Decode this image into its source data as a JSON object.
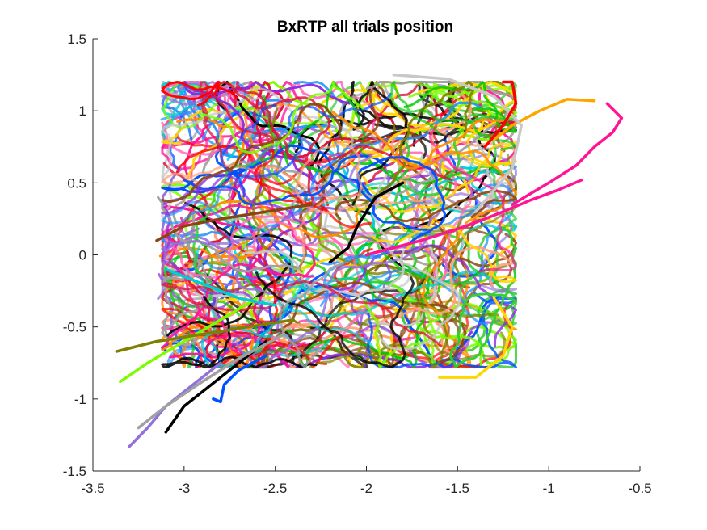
{
  "chart_data": {
    "type": "line",
    "title": "BxRTP all trials position",
    "xlabel": "",
    "ylabel": "",
    "xlim": [
      -3.5,
      -0.5
    ],
    "ylim": [
      -1.5,
      1.5
    ],
    "xticks": [
      "-3.5",
      "-3",
      "-2.5",
      "-2",
      "-1.5",
      "-1",
      "-0.5"
    ],
    "yticks": [
      "1.5",
      "1",
      "0.5",
      "0",
      "-0.5",
      "-1",
      "-1.5"
    ],
    "grid": false,
    "legend": "none",
    "series_colors": [
      "#ff1493",
      "#00c800",
      "#ff8c00",
      "#8b4513",
      "#0050ff",
      "#7cfc00",
      "#ff0000",
      "#000000",
      "#ffa07a",
      "#a0a0a0",
      "#9370db",
      "#32cd32",
      "#ff69b4",
      "#808000",
      "#1e90ff",
      "#c8c8c8",
      "#8a2be2",
      "#ffd700",
      "#00ced1",
      "#dc143c"
    ],
    "series": [
      {
        "color": "#ff1493",
        "x": [
          -0.82,
          -0.95,
          -1.1,
          -1.25,
          -1.45,
          -1.7,
          -2.0
        ],
        "y": [
          0.52,
          0.45,
          0.38,
          0.3,
          0.2,
          0.1,
          0.0
        ]
      },
      {
        "color": "#ff1493",
        "x": [
          -0.68,
          -0.6,
          -0.65,
          -0.75,
          -0.85,
          -1.0,
          -1.2
        ],
        "y": [
          1.05,
          0.95,
          0.85,
          0.75,
          0.62,
          0.5,
          0.35
        ]
      },
      {
        "color": "#ffa500",
        "x": [
          -0.75,
          -0.9,
          -1.05,
          -1.2,
          -1.3
        ],
        "y": [
          1.07,
          1.08,
          1.0,
          0.9,
          0.8
        ]
      },
      {
        "color": "#7cfc00",
        "x": [
          -3.35,
          -3.2,
          -3.0,
          -2.8,
          -2.6
        ],
        "y": [
          -0.88,
          -0.75,
          -0.6,
          -0.45,
          -0.3
        ]
      },
      {
        "color": "#9370db",
        "x": [
          -3.3,
          -3.2,
          -3.1,
          -2.95,
          -2.8
        ],
        "y": [
          -1.33,
          -1.2,
          -1.05,
          -0.9,
          -0.75
        ]
      },
      {
        "color": "#000000",
        "x": [
          -3.1,
          -3.0,
          -2.85,
          -2.7,
          -2.55
        ],
        "y": [
          -1.23,
          -1.05,
          -0.9,
          -0.75,
          -0.6
        ]
      },
      {
        "color": "#0050ff",
        "x": [
          -2.84,
          -2.8,
          -2.78,
          -2.7,
          -2.55
        ],
        "y": [
          -1.0,
          -1.02,
          -0.9,
          -0.8,
          -0.7
        ]
      },
      {
        "color": "#a0a0a0",
        "x": [
          -3.25,
          -3.1,
          -2.9,
          -2.7,
          -2.45
        ],
        "y": [
          -1.2,
          -1.05,
          -0.88,
          -0.72,
          -0.55
        ]
      },
      {
        "color": "#808000",
        "x": [
          -3.37,
          -3.15,
          -2.9,
          -2.65,
          -2.4
        ],
        "y": [
          -0.67,
          -0.6,
          -0.55,
          -0.5,
          -0.45
        ]
      },
      {
        "color": "#ffd700",
        "x": [
          -1.6,
          -1.4,
          -1.25,
          -1.2,
          -1.3
        ],
        "y": [
          -0.85,
          -0.85,
          -0.7,
          -0.5,
          -0.3
        ]
      },
      {
        "color": "#c8c8c8",
        "x": [
          -1.85,
          -1.55,
          -1.3,
          -1.15,
          -1.2,
          -1.4
        ],
        "y": [
          1.25,
          1.22,
          1.1,
          0.9,
          0.6,
          0.3
        ]
      },
      {
        "color": "#ff0000",
        "x": [
          -1.25,
          -1.2,
          -1.18,
          -1.25,
          -1.35
        ],
        "y": [
          1.2,
          1.2,
          1.05,
          0.9,
          0.75
        ]
      },
      {
        "color": "#8b4513",
        "x": [
          -3.15,
          -3.0,
          -2.8,
          -2.55,
          -2.3
        ],
        "y": [
          0.1,
          0.2,
          0.25,
          0.3,
          0.35
        ]
      },
      {
        "color": "#000000",
        "x": [
          -2.2,
          -2.1,
          -2.05,
          -1.95,
          -1.8
        ],
        "y": [
          -0.05,
          0.05,
          0.2,
          0.4,
          0.5
        ]
      },
      {
        "color": "#00ced1",
        "x": [
          -3.1,
          -2.9,
          -2.7,
          -2.5
        ],
        "y": [
          -0.1,
          -0.2,
          -0.3,
          -0.35
        ]
      }
    ]
  }
}
